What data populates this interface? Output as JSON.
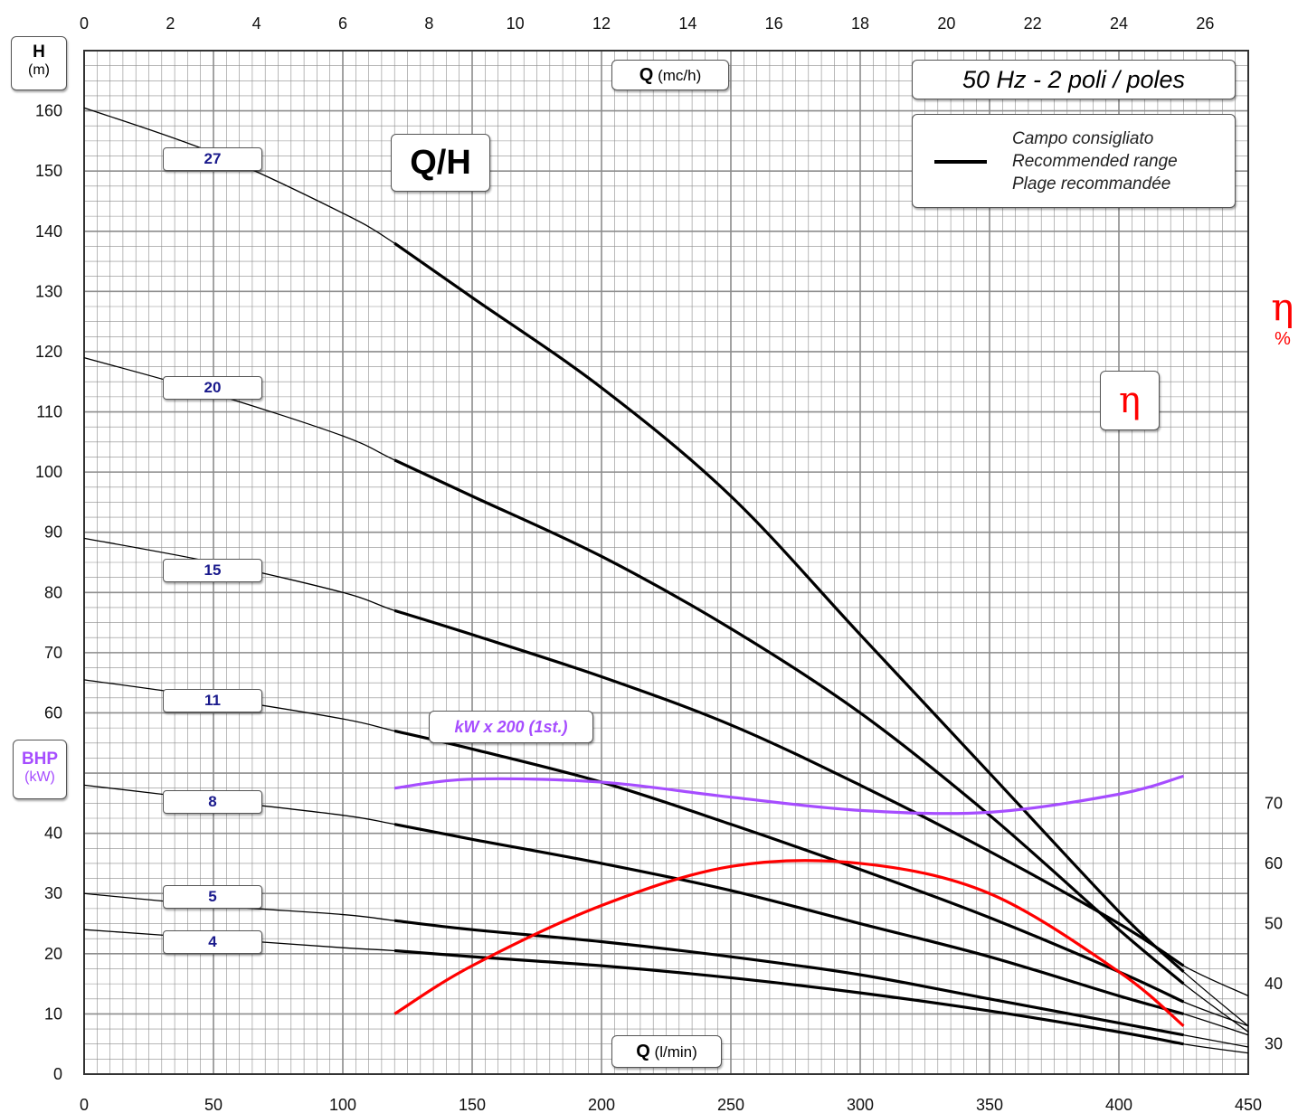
{
  "chart_data": {
    "type": "line",
    "x_bottom": {
      "label": "Q (l/min)",
      "range": [
        0,
        450
      ],
      "ticks": [
        0,
        50,
        100,
        150,
        200,
        250,
        300,
        350,
        400,
        450
      ]
    },
    "x_top": {
      "label": "Q (mc/h)",
      "range": [
        0,
        27
      ],
      "ticks": [
        0,
        2,
        4,
        6,
        8,
        10,
        12,
        14,
        16,
        18,
        20,
        22,
        24,
        26
      ]
    },
    "y_left": {
      "label": "H",
      "unit": "(m)",
      "range": [
        0,
        170
      ],
      "ticks": [
        0,
        10,
        20,
        30,
        40,
        50,
        60,
        70,
        80,
        90,
        100,
        110,
        120,
        130,
        140,
        150,
        160
      ]
    },
    "y_bhp": {
      "label": "BHP",
      "unit": "(kW)"
    },
    "y_right": {
      "symbol": "η",
      "unit": "%",
      "ticks": [
        30,
        40,
        50,
        60,
        70
      ]
    },
    "grid": true,
    "recommended_range": {
      "from": 120,
      "to": 425
    },
    "series": [
      {
        "name": "27",
        "x": [
          0,
          50,
          100,
          120,
          150,
          200,
          250,
          300,
          350,
          400,
          425,
          450
        ],
        "y": [
          160.5,
          153,
          143,
          138,
          129,
          114,
          96,
          73,
          50,
          27,
          17,
          8
        ]
      },
      {
        "name": "20",
        "x": [
          0,
          50,
          100,
          120,
          150,
          200,
          250,
          300,
          350,
          400,
          425,
          450
        ],
        "y": [
          119,
          113,
          106,
          102,
          96,
          86,
          74,
          60,
          43,
          24,
          15,
          7
        ]
      },
      {
        "name": "15",
        "x": [
          0,
          50,
          100,
          120,
          150,
          200,
          250,
          300,
          350,
          400,
          425,
          450
        ],
        "y": [
          89,
          85,
          80,
          77,
          73,
          66,
          58,
          48,
          37,
          25,
          18,
          13
        ]
      },
      {
        "name": "11",
        "x": [
          0,
          50,
          100,
          120,
          150,
          200,
          250,
          300,
          350,
          400,
          425,
          450
        ],
        "y": [
          65.5,
          62.5,
          59,
          57,
          54,
          48.5,
          41.5,
          34,
          26,
          17,
          12,
          8
        ]
      },
      {
        "name": "8",
        "x": [
          0,
          50,
          100,
          120,
          150,
          200,
          250,
          300,
          350,
          400,
          425,
          450
        ],
        "y": [
          48,
          45.5,
          43,
          41.5,
          39,
          35,
          30.5,
          25,
          19.5,
          13,
          10,
          6.5
        ]
      },
      {
        "name": "5",
        "x": [
          0,
          50,
          100,
          120,
          150,
          200,
          250,
          300,
          350,
          400,
          425,
          450
        ],
        "y": [
          30,
          28,
          26.5,
          25.5,
          24,
          22,
          19.5,
          16.5,
          12.5,
          8.5,
          6.5,
          4.5
        ]
      },
      {
        "name": "4",
        "x": [
          0,
          50,
          100,
          120,
          150,
          200,
          250,
          300,
          350,
          400,
          425,
          450
        ],
        "y": [
          24,
          22.5,
          21,
          20.5,
          19.5,
          18,
          16,
          13.5,
          10.5,
          7,
          5,
          3.5
        ]
      }
    ],
    "efficiency": {
      "name": "η",
      "x": [
        120,
        150,
        200,
        250,
        300,
        350,
        400,
        425
      ],
      "y": [
        35,
        43,
        53,
        59.5,
        60,
        55,
        42,
        33
      ]
    },
    "bhp": {
      "name": "kW x 200 (1st.)",
      "x": [
        120,
        150,
        200,
        250,
        300,
        350,
        400,
        425
      ],
      "y": [
        47.5,
        49,
        48.5,
        46,
        43.8,
        43.5,
        46.5,
        49.5
      ]
    }
  },
  "labels": {
    "h": "H",
    "h_unit": "(m)",
    "bhp": "BHP",
    "bhp_unit": "(kW)",
    "q_top_strong": "Q",
    "q_top_unit": "(mc/h)",
    "q_bottom_strong": "Q",
    "q_bottom_unit": "(l/min)",
    "title": "Q/H",
    "frequency": "50 Hz - 2 poli / poles",
    "legend_line1": "Campo consigliato",
    "legend_line2": "Recommended range",
    "legend_line3": "Plage recommandée",
    "eta_box": "η",
    "eta_axis": "η",
    "eta_pct": "%",
    "kw_label": "kW x 200 (1st.)"
  },
  "colors": {
    "curve": "#000000",
    "efficiency": "#ff0000",
    "bhp": "#a64dff",
    "grid": "#555555",
    "stage_text": "#1a1a8c"
  }
}
